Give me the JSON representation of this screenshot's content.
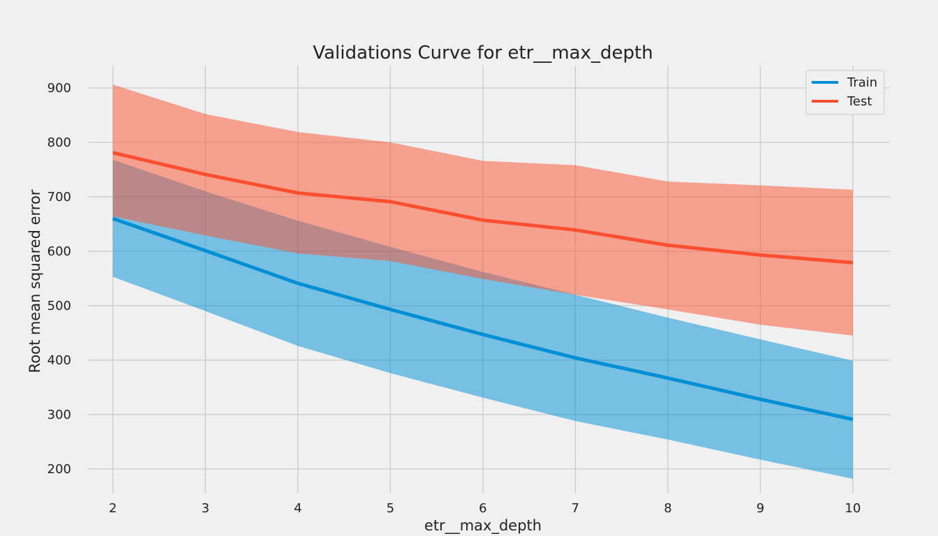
{
  "chart_data": {
    "type": "line",
    "title": "Validations Curve for etr__max_depth",
    "xlabel": "etr__max_depth",
    "ylabel": "Root mean squared error",
    "x": [
      2,
      3,
      4,
      5,
      6,
      7,
      8,
      9,
      10
    ],
    "xlim": [
      1.73,
      10.4
    ],
    "ylim": [
      155,
      941
    ],
    "x_ticks": [
      2,
      3,
      4,
      5,
      6,
      7,
      8,
      9,
      10
    ],
    "y_ticks": [
      200,
      300,
      400,
      500,
      600,
      700,
      800,
      900
    ],
    "grid": true,
    "legend_position": "top-right",
    "series": [
      {
        "name": "Train",
        "color": "#008fd5",
        "values": [
          660,
          601,
          541,
          493,
          447,
          404,
          367,
          328,
          291
        ],
        "band_upper": [
          768,
          710,
          656,
          608,
          562,
          520,
          478,
          438,
          399
        ],
        "band_lower": [
          553,
          490,
          426,
          376,
          331,
          288,
          254,
          217,
          182
        ]
      },
      {
        "name": "Test",
        "color": "#fc4f30",
        "values": [
          781,
          741,
          707,
          691,
          657,
          639,
          611,
          593,
          579
        ],
        "band_upper": [
          906,
          852,
          819,
          800,
          766,
          758,
          728,
          721,
          713
        ],
        "band_lower": [
          664,
          629,
          596,
          582,
          549,
          520,
          493,
          465,
          445
        ]
      }
    ]
  }
}
